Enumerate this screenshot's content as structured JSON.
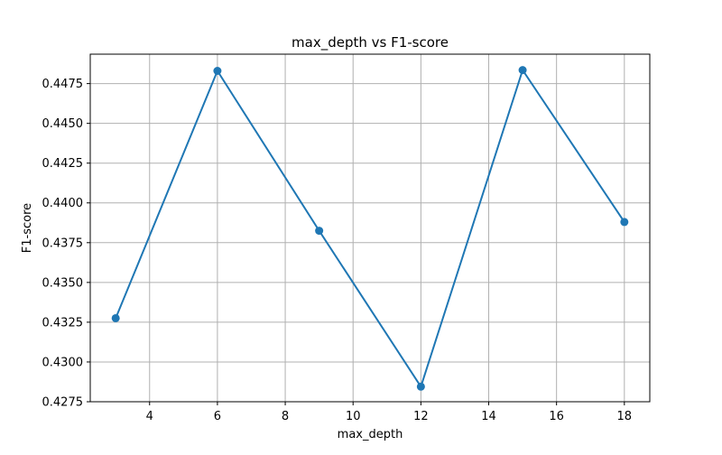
{
  "chart_data": {
    "type": "line",
    "title": "max_depth vs F1-score",
    "xlabel": "max_depth",
    "ylabel": "F1-score",
    "x": [
      3,
      6,
      9,
      12,
      15,
      18
    ],
    "series": [
      {
        "values": [
          0.43275,
          0.4483,
          0.43825,
          0.42845,
          0.44835,
          0.4388
        ],
        "color": "#1f77b4",
        "marker": "circle"
      }
    ],
    "xlim": [
      2.25,
      18.75
    ],
    "ylim": [
      0.4275,
      0.44935
    ],
    "xticks": [
      4,
      6,
      8,
      10,
      12,
      14,
      16,
      18
    ],
    "yticks": [
      0.4275,
      0.43,
      0.4325,
      0.435,
      0.4375,
      0.44,
      0.4425,
      0.445,
      0.4475
    ],
    "xtick_labels": [
      "4",
      "6",
      "8",
      "10",
      "12",
      "14",
      "16",
      "18"
    ],
    "ytick_labels": [
      "0.4275",
      "0.4300",
      "0.4325",
      "0.4350",
      "0.4375",
      "0.4400",
      "0.4425",
      "0.4450",
      "0.4475"
    ],
    "grid": true,
    "legend": false
  }
}
